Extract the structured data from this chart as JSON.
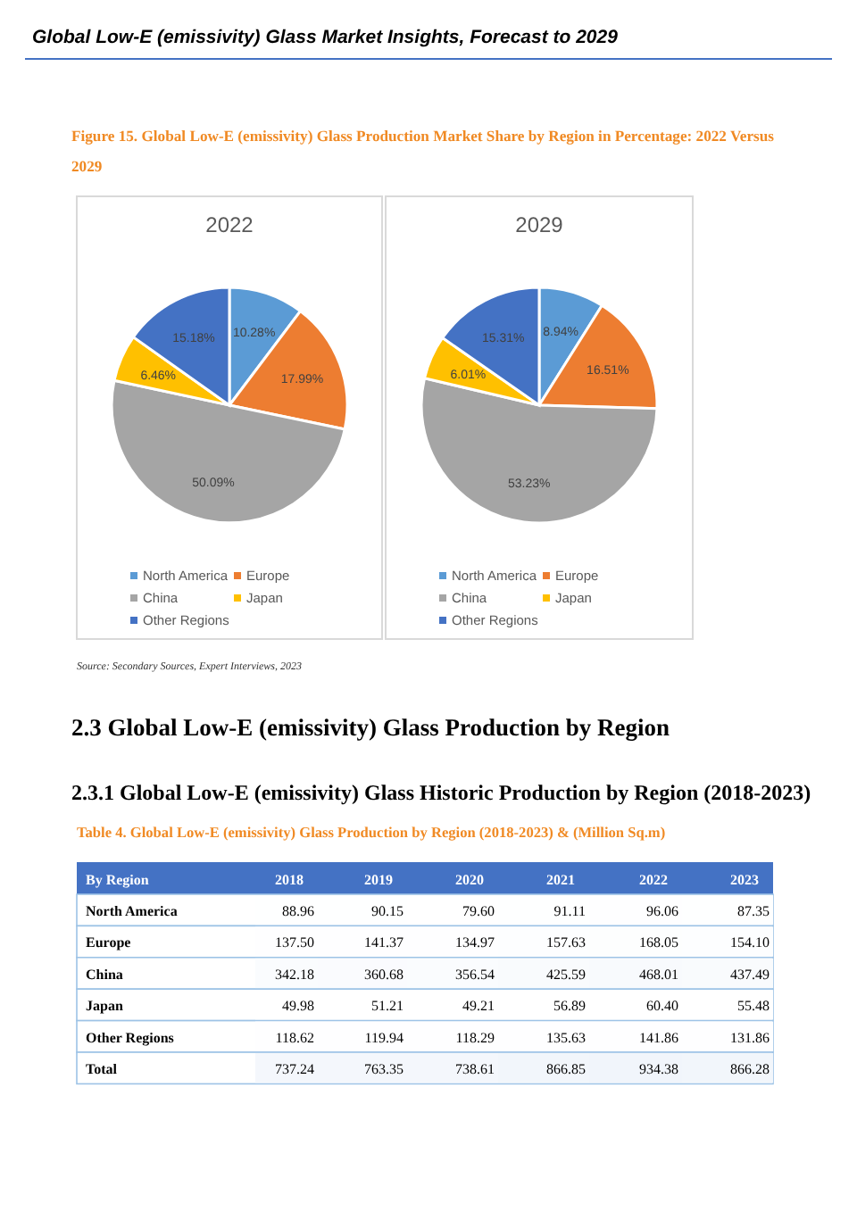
{
  "chart_data": [
    {
      "type": "pie",
      "title": "2022",
      "categories": [
        "North America",
        "Europe",
        "China",
        "Japan",
        "Other Regions"
      ],
      "values": [
        10.28,
        17.99,
        50.09,
        6.46,
        15.18
      ],
      "colors": [
        "#5b9bd5",
        "#ed7d31",
        "#a5a5a5",
        "#ffc000",
        "#4472c4"
      ],
      "value_labels": [
        "10.28%",
        "17.99%",
        "50.09%",
        "6.46%",
        "15.18%"
      ],
      "legend": "bottom",
      "annotations": [
        "Global Low-E (emissivity) Glass Market Insights, Forecast to 2029",
        "Figure 15.   Global Low-E (emissivity) Glass Production Market Share by Region in Percentage: 2022 Versus 2029",
        "Source: Secondary Sources, Expert Interviews, 2023"
      ]
    },
    {
      "type": "pie",
      "title": "2029",
      "categories": [
        "North America",
        "Europe",
        "China",
        "Japan",
        "Other Regions"
      ],
      "values": [
        8.94,
        16.51,
        53.23,
        6.01,
        15.31
      ],
      "colors": [
        "#5b9bd5",
        "#ed7d31",
        "#a5a5a5",
        "#ffc000",
        "#4472c4"
      ],
      "value_labels": [
        "8.94%",
        "16.51%",
        "53.23%",
        "6.01%",
        "15.31%"
      ],
      "legend": "bottom"
    },
    {
      "type": "heatmap",
      "title": "Table 4.   Global Low-E (emissivity) Glass Production by Region (2018-2023) & (Million Sq.m)",
      "annotations": [
        "2.3  Global Low-E (emissivity) Glass Production by Region",
        "2.3.1  Global Low-E (emissivity) Glass Historic Production by Region (2018-2023)"
      ],
      "ylabel": "By Region",
      "data_labels": true,
      "categories": [
        "2018",
        "2019",
        "2020",
        "2021",
        "2022",
        "2023"
      ],
      "y_categories": [
        "North America",
        "Europe",
        "China",
        "Japan",
        "Other Regions",
        "Total"
      ],
      "cells": [
        [
          88.96,
          90.15,
          79.6,
          91.11,
          96.06,
          87.35
        ],
        [
          137.5,
          141.37,
          134.97,
          157.63,
          168.05,
          154.1
        ],
        [
          342.18,
          360.68,
          356.54,
          425.59,
          468.01,
          437.49
        ],
        [
          49.98,
          51.21,
          49.21,
          56.89,
          60.4,
          55.48
        ],
        [
          118.62,
          119.94,
          118.29,
          135.63,
          141.86,
          131.86
        ],
        [
          737.24,
          763.35,
          738.61,
          866.85,
          934.38,
          866.28
        ]
      ],
      "cell_labels": [
        [
          "88.96",
          "90.15",
          "79.60",
          "91.11",
          "96.06",
          "87.35"
        ],
        [
          "137.50",
          "141.37",
          "134.97",
          "157.63",
          "168.05",
          "154.10"
        ],
        [
          "342.18",
          "360.68",
          "356.54",
          "425.59",
          "468.01",
          "437.49"
        ],
        [
          "49.98",
          "51.21",
          "49.21",
          "56.89",
          "60.40",
          "55.48"
        ],
        [
          "118.62",
          "119.94",
          "118.29",
          "135.63",
          "141.86",
          "131.86"
        ],
        [
          "737.24",
          "763.35",
          "738.61",
          "866.85",
          "934.38",
          "866.28"
        ]
      ]
    }
  ]
}
